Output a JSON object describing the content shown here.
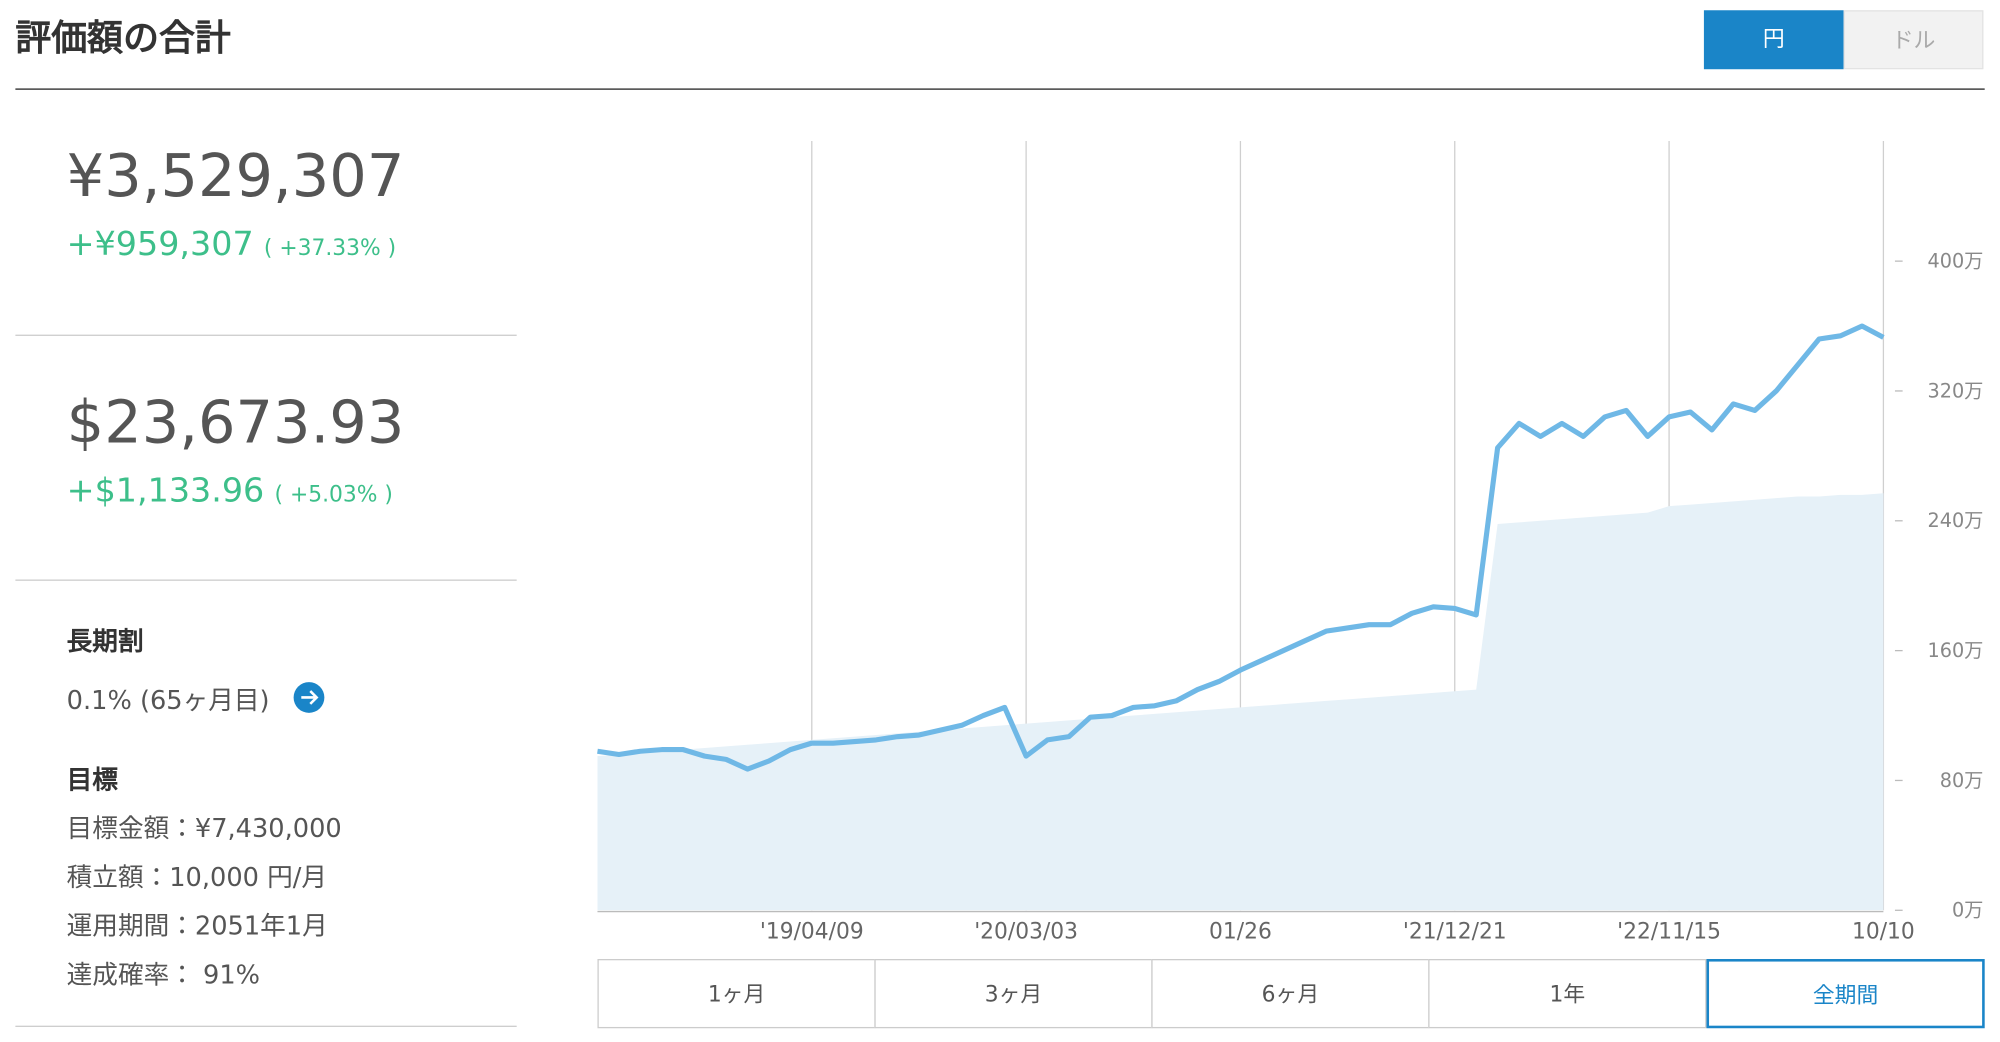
{
  "header": {
    "title": "評価額の合計",
    "currency_toggle": [
      "円",
      "ドル"
    ]
  },
  "summary": {
    "yen": {
      "total": "¥3,529,307",
      "gain": "+¥959,307",
      "gain_pct": "( +37.33% )"
    },
    "usd": {
      "total": "$23,673.93",
      "gain": "+$1,133.96",
      "gain_pct": "( +5.03% )"
    }
  },
  "long_term": {
    "label": "長期割",
    "value": "0.1% (65ヶ月目)"
  },
  "goal": {
    "title": "目標",
    "items": [
      "目標金額：¥7,430,000",
      "積立額：10,000 円/月",
      "運用期間：2051年1月",
      "達成確率： 91%"
    ]
  },
  "period_buttons": [
    "1ヶ月",
    "3ヶ月",
    "6ヶ月",
    "1年",
    "全期間"
  ],
  "chart_data": {
    "type": "line",
    "categories": [
      null,
      null,
      null,
      null,
      null,
      null,
      null,
      null,
      null,
      null,
      "'19/04/09",
      null,
      null,
      null,
      null,
      null,
      null,
      null,
      null,
      null,
      "'20/03/03",
      null,
      null,
      null,
      null,
      null,
      null,
      null,
      null,
      null,
      "01/26",
      null,
      null,
      null,
      null,
      null,
      null,
      null,
      null,
      null,
      "'21/12/21",
      null,
      null,
      null,
      null,
      null,
      null,
      null,
      null,
      null,
      "'22/11/15",
      null,
      null,
      null,
      null,
      null,
      null,
      null,
      null,
      null,
      "10/10"
    ],
    "series": [
      {
        "kind": "area",
        "color": "#e6f1f8",
        "values": [
          95,
          96,
          97,
          98,
          99,
          100,
          101,
          102,
          103,
          104,
          105,
          106,
          107,
          108,
          109,
          110,
          111,
          112,
          113,
          114,
          115,
          116,
          117,
          118,
          119,
          120,
          121,
          122,
          123,
          124,
          125,
          126,
          127,
          128,
          129,
          130,
          131,
          132,
          133,
          134,
          135,
          136,
          238,
          239,
          240,
          241,
          242,
          243,
          244,
          245,
          249,
          250,
          251,
          252,
          253,
          254,
          255,
          255,
          256,
          256,
          257
        ]
      },
      {
        "kind": "line",
        "color": "#6fb8e6",
        "values": [
          98,
          96,
          98,
          99,
          99,
          95,
          93,
          87,
          92,
          99,
          103,
          103,
          104,
          105,
          107,
          108,
          111,
          114,
          120,
          125,
          95,
          105,
          107,
          119,
          120,
          125,
          126,
          129,
          136,
          141,
          148,
          154,
          160,
          166,
          172,
          174,
          176,
          176,
          183,
          187,
          186,
          182,
          285,
          300,
          292,
          300,
          292,
          304,
          308,
          292,
          304,
          307,
          296,
          312,
          308,
          320,
          336,
          352,
          354,
          360,
          353
        ]
      }
    ],
    "ylim": [
      0,
      474
    ],
    "yticks": [
      {
        "value": 0,
        "label": "0万"
      },
      {
        "value": 80,
        "label": "80万"
      },
      {
        "value": 160,
        "label": "160万"
      },
      {
        "value": 240,
        "label": "240万"
      },
      {
        "value": 320,
        "label": "320万"
      },
      {
        "value": 400,
        "label": "400万"
      }
    ],
    "grid": true
  }
}
